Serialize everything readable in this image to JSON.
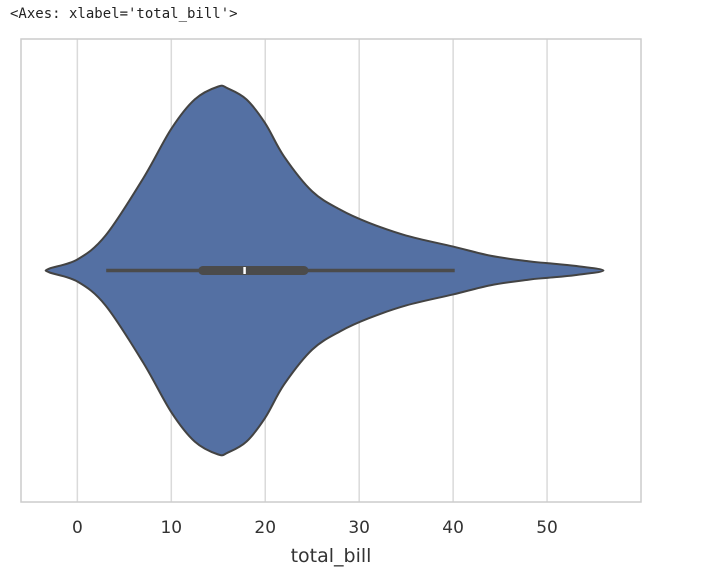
{
  "output": {
    "repr_text": "<Axes: xlabel='total_bill'>"
  },
  "chart_data": {
    "type": "violin",
    "title": "",
    "xlabel": "total_bill",
    "ylabel": "",
    "xlim": [
      -6,
      60
    ],
    "x_ticks": [
      0,
      10,
      20,
      30,
      40,
      50
    ],
    "x_tick_labels": [
      "0",
      "10",
      "20",
      "30",
      "40",
      "50"
    ],
    "grid": "vertical",
    "density_profile": [
      [
        -3,
        0.01
      ],
      [
        0,
        0.06
      ],
      [
        3,
        0.19
      ],
      [
        7,
        0.5
      ],
      [
        10,
        0.77
      ],
      [
        12.5,
        0.93
      ],
      [
        15,
        1.0
      ],
      [
        16,
        0.99
      ],
      [
        18,
        0.93
      ],
      [
        20,
        0.8
      ],
      [
        22,
        0.62
      ],
      [
        25,
        0.43
      ],
      [
        28,
        0.33
      ],
      [
        31,
        0.26
      ],
      [
        35,
        0.19
      ],
      [
        40,
        0.13
      ],
      [
        44,
        0.08
      ],
      [
        48,
        0.05
      ],
      [
        50,
        0.04
      ],
      [
        53,
        0.025
      ],
      [
        56,
        0.0
      ]
    ],
    "box": {
      "whisker_low": 3.07,
      "q1": 13.35,
      "median": 17.8,
      "q3": 24.13,
      "whisker_high": 40.17
    },
    "colors": {
      "fill": "#5470a3",
      "edge": "#434343",
      "box": "#4b4b4b",
      "median": "#ffffff",
      "grid": "#dadada",
      "frame": "#cccccc"
    }
  }
}
